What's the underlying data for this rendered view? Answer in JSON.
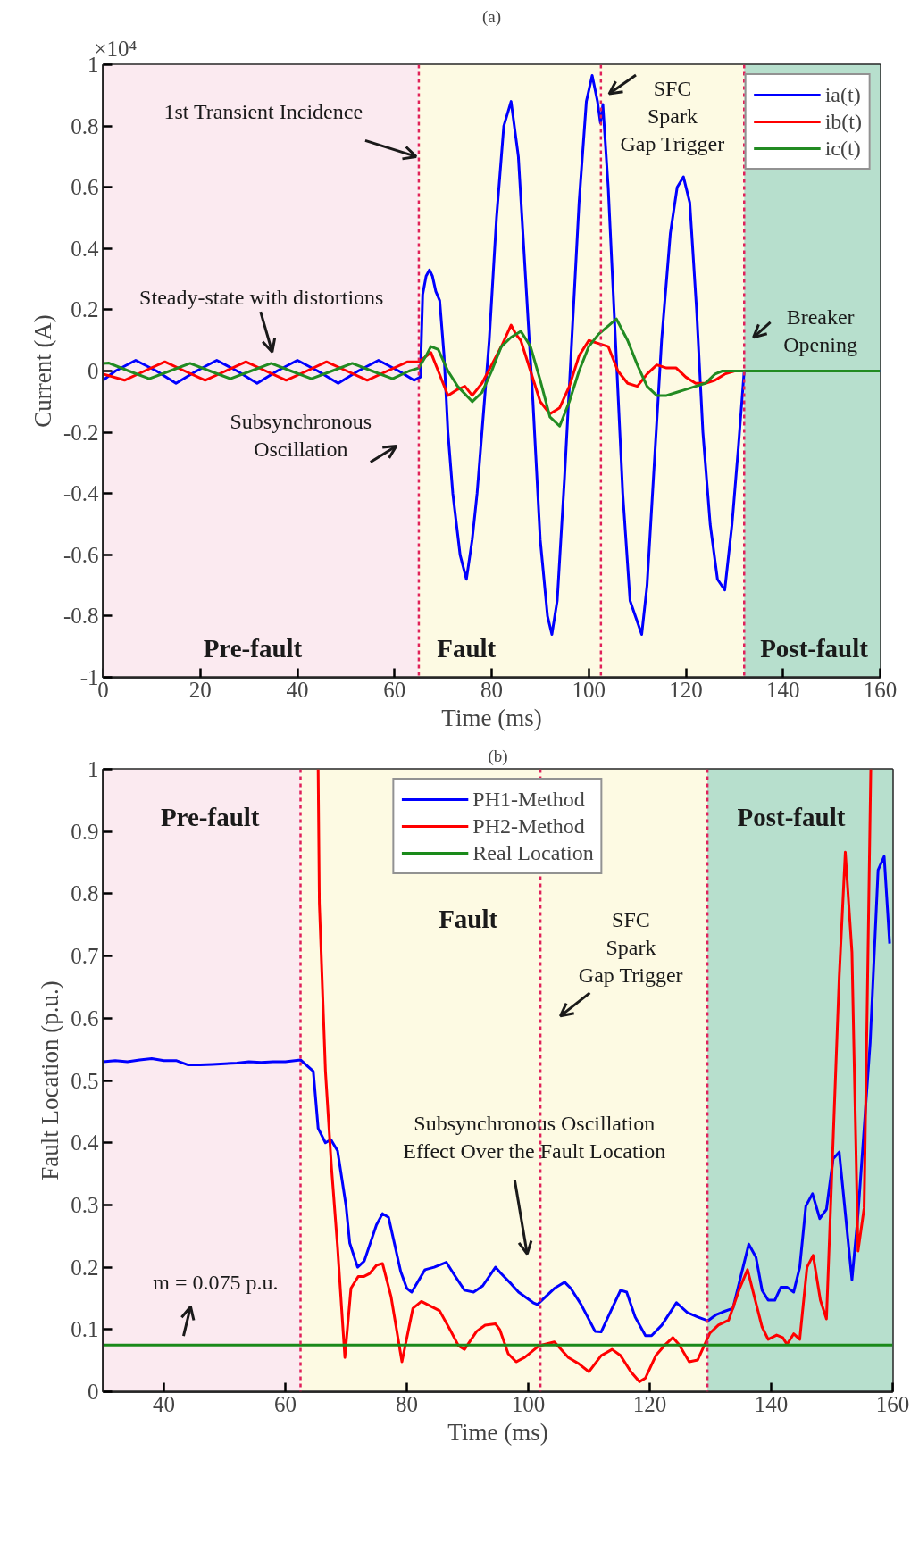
{
  "chart_data": [
    {
      "type": "line",
      "title": "(a)",
      "xlabel": "Time (ms)",
      "ylabel": "Current (A)",
      "xlim": [
        0,
        160
      ],
      "xticks": [
        0,
        20,
        40,
        60,
        80,
        100,
        120,
        140,
        160
      ],
      "ylim": [
        -1,
        1
      ],
      "yticks": [
        -1,
        -0.8,
        -0.6,
        -0.4,
        -0.2,
        0,
        0.2,
        0.4,
        0.6,
        0.8,
        1
      ],
      "grid": false,
      "legend": "top right",
      "line_style": "solid",
      "series": [
        {
          "name": "ia(t)",
          "color": "#0000ff",
          "x": [
            0,
            2.5,
            6.7,
            11,
            15,
            19.2,
            23.4,
            27.6,
            31.7,
            35.8,
            40,
            44.2,
            48.4,
            52.5,
            56.7,
            60.9,
            64,
            65.3,
            65.8,
            66.5,
            67.2,
            67.8,
            68.5,
            69.3,
            70.2,
            71,
            72,
            73.5,
            74.8,
            76,
            77,
            78.5,
            79.5,
            81,
            82.5,
            84,
            85.5,
            87,
            88.5,
            90,
            91.5,
            92.4,
            93.5,
            95,
            96.5,
            98,
            99.5,
            100.7,
            101.8,
            102.4,
            102.9,
            104,
            105.5,
            107,
            108.5,
            110.9,
            112,
            113.5,
            115,
            116.8,
            118.2,
            119.5,
            120.8,
            122.2,
            123.5,
            125,
            126.5,
            128,
            129.5,
            130.8,
            132,
            160
          ],
          "values": [
            -0.03,
            0.0,
            0.035,
            0.0,
            -0.04,
            0.0,
            0.035,
            0.0,
            -0.04,
            0.0,
            0.035,
            0.0,
            -0.04,
            0.0,
            0.035,
            0.0,
            -0.03,
            -0.02,
            0.25,
            0.31,
            0.33,
            0.31,
            0.26,
            0.23,
            0.05,
            -0.2,
            -0.4,
            -0.6,
            -0.68,
            -0.55,
            -0.4,
            -0.1,
            0.1,
            0.5,
            0.8,
            0.88,
            0.7,
            0.3,
            -0.1,
            -0.55,
            -0.8,
            -0.86,
            -0.75,
            -0.35,
            0.1,
            0.55,
            0.88,
            0.965,
            0.88,
            0.81,
            0.87,
            0.6,
            0.1,
            -0.4,
            -0.75,
            -0.86,
            -0.7,
            -0.3,
            0.1,
            0.45,
            0.6,
            0.634,
            0.55,
            0.2,
            -0.2,
            -0.5,
            -0.68,
            -0.715,
            -0.5,
            -0.25,
            0.0,
            0.0
          ]
        },
        {
          "name": "ib(t)",
          "color": "#ff0000",
          "x": [
            0,
            4.4,
            8.5,
            12.7,
            16.8,
            21,
            25.2,
            29.4,
            33.5,
            37.7,
            41.9,
            46,
            50.2,
            54.4,
            58.5,
            62.7,
            65,
            67.5,
            69,
            71,
            73,
            74.5,
            76,
            78,
            80,
            82,
            84,
            85,
            86,
            88,
            90,
            92,
            94,
            96,
            98,
            100,
            102,
            104,
            106,
            108,
            110,
            112,
            114,
            116,
            118,
            120,
            122,
            124,
            126,
            128,
            130
          ],
          "values": [
            -0.01,
            -0.03,
            0.0,
            0.03,
            0.0,
            -0.03,
            0.0,
            0.03,
            0.0,
            -0.03,
            0.0,
            0.03,
            0.0,
            -0.03,
            0.0,
            0.03,
            0.03,
            0.06,
            0.0,
            -0.08,
            -0.06,
            -0.05,
            -0.08,
            -0.04,
            0.02,
            0.08,
            0.15,
            0.12,
            0.1,
            0.0,
            -0.1,
            -0.14,
            -0.12,
            -0.05,
            0.05,
            0.1,
            0.09,
            0.08,
            0.0,
            -0.04,
            -0.05,
            -0.01,
            0.02,
            0.01,
            0.01,
            -0.02,
            -0.04,
            -0.04,
            -0.03,
            -0.01,
            0.0
          ]
        },
        {
          "name": "ic(t)",
          "color": "#228b22",
          "x": [
            0,
            1.2,
            5.3,
            9.5,
            13.7,
            17.9,
            22,
            26.2,
            30.4,
            34.6,
            38.7,
            42.9,
            47.1,
            51.3,
            55.4,
            59.6,
            63,
            65,
            66.5,
            67.5,
            69,
            71,
            73,
            76,
            78,
            80,
            82,
            84,
            86,
            88,
            90,
            92,
            94,
            96,
            98,
            100,
            102,
            105.7,
            108,
            110,
            112,
            114,
            116,
            118,
            120,
            122,
            124,
            126,
            127.5,
            160
          ],
          "values": [
            0.025,
            0.026,
            0.0,
            -0.025,
            0.0,
            0.025,
            0.0,
            -0.025,
            0.0,
            0.025,
            0.0,
            -0.025,
            0.0,
            0.025,
            0.0,
            -0.025,
            0.0,
            0.01,
            0.05,
            0.08,
            0.07,
            0.0,
            -0.05,
            -0.1,
            -0.07,
            0.0,
            0.08,
            0.11,
            0.13,
            0.08,
            -0.03,
            -0.15,
            -0.18,
            -0.1,
            0.0,
            0.08,
            0.12,
            0.17,
            0.1,
            0.02,
            -0.05,
            -0.08,
            -0.08,
            -0.07,
            -0.06,
            -0.05,
            -0.04,
            -0.01,
            0.0,
            0.0
          ]
        }
      ],
      "bands": [
        {
          "axis": "x",
          "from": 0,
          "to": 65,
          "color": "#fbeaf0"
        },
        {
          "axis": "x",
          "from": 65,
          "to": 132,
          "color": "#fdfae3"
        },
        {
          "axis": "x",
          "from": 132,
          "to": 160,
          "color": "#b7dfcd"
        }
      ],
      "ref_lines": [
        {
          "axis": "x",
          "value": 65,
          "color": "#e0215a",
          "line_style": "dotted"
        },
        {
          "axis": "x",
          "value": 102.5,
          "color": "#e0215a",
          "line_style": "dotted"
        },
        {
          "axis": "x",
          "value": 132,
          "color": "#e0215a",
          "line_style": "dotted"
        }
      ],
      "annotations": [
        "×10⁴",
        {
          "text": "1st Transient Incidence",
          "x": 65,
          "y": 0.7
        },
        "Steady-state with distortions",
        "Subsynchronous\nOscillation",
        {
          "text": "SFC\nSpark\nGap Trigger",
          "x": 102.9,
          "y": 0.87
        },
        "Breaker\nOpening",
        "Pre-fault",
        "Fault",
        "Post-fault"
      ]
    },
    {
      "type": "line",
      "title": "(b)",
      "xlabel": "Time (ms)",
      "ylabel": "Fault Location (p.u.)",
      "xlim": [
        30,
        160
      ],
      "xticks": [
        40,
        60,
        80,
        100,
        120,
        140,
        160
      ],
      "ylim": [
        0,
        1
      ],
      "yticks": [
        0,
        0.1,
        0.2,
        0.3,
        0.4,
        0.5,
        0.6,
        0.7,
        0.8,
        0.9,
        1
      ],
      "grid": false,
      "legend": "top",
      "line_style": "solid",
      "series": [
        {
          "name": "PH1-Method",
          "color": "#0000ff",
          "x": [
            30,
            32,
            34,
            36,
            38,
            40,
            42,
            44,
            46,
            48,
            50,
            52,
            54,
            56,
            58,
            60,
            62.5,
            64.6,
            65.4,
            66.6,
            67.5,
            68.6,
            70,
            70.6,
            71.9,
            73,
            75,
            76,
            77,
            79,
            80,
            80.8,
            83,
            84.5,
            86.5,
            88,
            89.5,
            91,
            92.5,
            94.6,
            95.5,
            97.2,
            98.4,
            100.8,
            101.5,
            104.3,
            106,
            107,
            108.7,
            111,
            112,
            113.8,
            115.2,
            116.2,
            117.6,
            119.3,
            120.3,
            122,
            124.4,
            126.2,
            127.9,
            129.6,
            131,
            132,
            133.7,
            136.3,
            137.5,
            138.5,
            139.5,
            140.6,
            141.6,
            142.6,
            143.7,
            144.7,
            145.7,
            146.8,
            148,
            149.1,
            150.2,
            151.2,
            153.3,
            154.3,
            156.3,
            157.6,
            158.6,
            159.5
          ],
          "values": [
            0.53,
            0.532,
            0.53,
            0.533,
            0.535,
            0.532,
            0.532,
            0.525,
            0.525,
            0.526,
            0.527,
            0.528,
            0.53,
            0.529,
            0.53,
            0.53,
            0.533,
            0.515,
            0.423,
            0.4,
            0.405,
            0.387,
            0.298,
            0.239,
            0.2,
            0.21,
            0.268,
            0.286,
            0.28,
            0.193,
            0.166,
            0.16,
            0.196,
            0.2,
            0.208,
            0.185,
            0.163,
            0.16,
            0.17,
            0.2,
            0.19,
            0.173,
            0.16,
            0.143,
            0.14,
            0.166,
            0.176,
            0.166,
            0.14,
            0.097,
            0.096,
            0.134,
            0.163,
            0.16,
            0.12,
            0.09,
            0.09,
            0.107,
            0.143,
            0.127,
            0.12,
            0.114,
            0.124,
            0.128,
            0.134,
            0.237,
            0.216,
            0.163,
            0.147,
            0.147,
            0.168,
            0.168,
            0.16,
            0.2,
            0.298,
            0.318,
            0.278,
            0.293,
            0.374,
            0.385,
            0.18,
            0.285,
            0.561,
            0.838,
            0.86,
            0.72
          ]
        },
        {
          "name": "PH2-Method",
          "color": "#ff0000",
          "x": [
            65.4,
            65.6,
            66.6,
            67.6,
            68.6,
            69.8,
            70.8,
            72,
            72.9,
            73.9,
            75,
            76,
            77.4,
            79.2,
            81,
            82.4,
            85.4,
            87.1,
            88.5,
            89.5,
            91.5,
            92.9,
            94.6,
            95.3,
            96.7,
            98,
            99.4,
            101.8,
            104.3,
            106.6,
            108.3,
            110,
            112,
            113.8,
            115.2,
            116.9,
            118.3,
            119.3,
            121,
            122.4,
            123.8,
            124.8,
            126.5,
            127.9,
            129.9,
            131.3,
            133,
            134.8,
            136.1,
            138.5,
            139.5,
            140.9,
            141.9,
            142.6,
            143.7,
            144.7,
            145.9,
            146.9,
            148.1,
            149.1,
            151.2,
            152.2,
            153.3,
            154.3,
            155.3,
            156.4
          ],
          "values": [
            1.0,
            0.785,
            0.515,
            0.36,
            0.232,
            0.055,
            0.166,
            0.185,
            0.185,
            0.19,
            0.203,
            0.206,
            0.153,
            0.048,
            0.134,
            0.145,
            0.13,
            0.1,
            0.074,
            0.068,
            0.097,
            0.107,
            0.109,
            0.1,
            0.061,
            0.048,
            0.055,
            0.074,
            0.08,
            0.055,
            0.045,
            0.032,
            0.058,
            0.068,
            0.058,
            0.032,
            0.016,
            0.022,
            0.058,
            0.074,
            0.087,
            0.076,
            0.048,
            0.051,
            0.094,
            0.107,
            0.115,
            0.166,
            0.196,
            0.104,
            0.084,
            0.091,
            0.087,
            0.076,
            0.093,
            0.084,
            0.2,
            0.219,
            0.147,
            0.117,
            0.666,
            0.867,
            0.706,
            0.226,
            0.295,
            1.0
          ]
        },
        {
          "name": "Real Location",
          "color": "#1a8a1a",
          "x": [
            30,
            160
          ],
          "values": [
            0.075,
            0.075
          ]
        }
      ],
      "bands": [
        {
          "axis": "x",
          "from": 30,
          "to": 62.5,
          "color": "#fbeaf0"
        },
        {
          "axis": "x",
          "from": 62.5,
          "to": 129.5,
          "color": "#fdfae3"
        },
        {
          "axis": "x",
          "from": 129.5,
          "to": 160,
          "color": "#b7dfcd"
        }
      ],
      "ref_lines": [
        {
          "axis": "x",
          "value": 62.5,
          "color": "#e0215a",
          "line_style": "dotted"
        },
        {
          "axis": "x",
          "value": 102,
          "color": "#e0215a",
          "line_style": "dotted"
        },
        {
          "axis": "x",
          "value": 129.5,
          "color": "#e0215a",
          "line_style": "dotted"
        }
      ],
      "annotations": [
        {
          "text": "m = 0.075 p.u.",
          "x": 42.2,
          "y": 0.075
        },
        "SFC\nSpark\nGap Trigger",
        "Subsynchronous Oscillation\nEffect Over the Fault Location",
        "Pre-fault",
        "Fault",
        "Post-fault"
      ]
    }
  ]
}
